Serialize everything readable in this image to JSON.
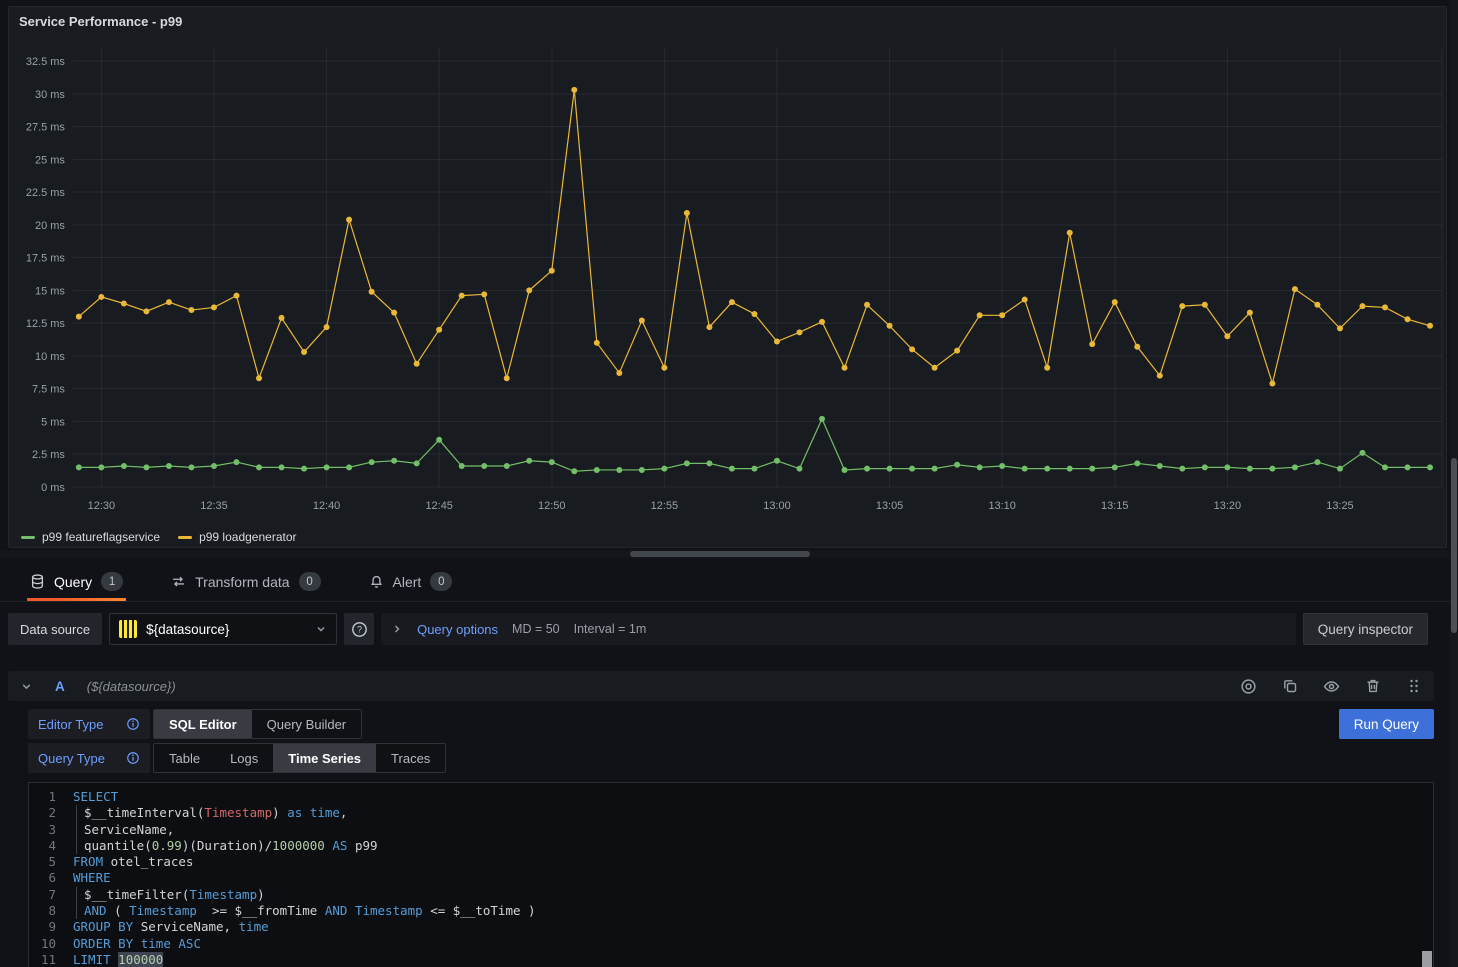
{
  "panel": {
    "title": "Service Performance - p99",
    "legend": [
      {
        "label": "p99 featureflagservice",
        "color": "#73BF69"
      },
      {
        "label": "p99 loadgenerator",
        "color": "#EAB839"
      }
    ]
  },
  "chart_data": {
    "type": "line",
    "title": "Service Performance - p99",
    "xlabel": "",
    "ylabel": "",
    "ylim": [
      0,
      32.5
    ],
    "grid": true,
    "legend_position": "bottom-left",
    "yticks": [
      "0 ms",
      "2.5 ms",
      "5 ms",
      "7.5 ms",
      "10 ms",
      "12.5 ms",
      "15 ms",
      "17.5 ms",
      "20 ms",
      "22.5 ms",
      "25 ms",
      "27.5 ms",
      "30 ms",
      "32.5 ms"
    ],
    "xticks": [
      "12:30",
      "12:35",
      "12:40",
      "12:45",
      "12:50",
      "12:55",
      "13:00",
      "13:05",
      "13:10",
      "13:15",
      "13:20",
      "13:25"
    ],
    "x": [
      "12:29",
      "12:30",
      "12:31",
      "12:32",
      "12:33",
      "12:34",
      "12:35",
      "12:36",
      "12:37",
      "12:38",
      "12:39",
      "12:40",
      "12:41",
      "12:42",
      "12:43",
      "12:44",
      "12:45",
      "12:46",
      "12:47",
      "12:48",
      "12:49",
      "12:50",
      "12:51",
      "12:52",
      "12:53",
      "12:54",
      "12:55",
      "12:56",
      "12:57",
      "12:58",
      "12:59",
      "13:00",
      "13:01",
      "13:02",
      "13:03",
      "13:04",
      "13:05",
      "13:06",
      "13:07",
      "13:08",
      "13:09",
      "13:10",
      "13:11",
      "13:12",
      "13:13",
      "13:14",
      "13:15",
      "13:16",
      "13:17",
      "13:18",
      "13:19",
      "13:20",
      "13:21",
      "13:22",
      "13:23",
      "13:24",
      "13:25",
      "13:26",
      "13:27",
      "13:28",
      "13:29"
    ],
    "series": [
      {
        "name": "p99 featureflagservice",
        "color": "#73BF69",
        "values": [
          1.5,
          1.5,
          1.6,
          1.5,
          1.6,
          1.5,
          1.6,
          1.9,
          1.5,
          1.5,
          1.4,
          1.5,
          1.5,
          1.9,
          2.0,
          1.8,
          3.6,
          1.6,
          1.6,
          1.6,
          2.0,
          1.9,
          1.2,
          1.3,
          1.3,
          1.3,
          1.4,
          1.8,
          1.8,
          1.4,
          1.4,
          2.0,
          1.4,
          5.2,
          1.3,
          1.4,
          1.4,
          1.4,
          1.4,
          1.7,
          1.5,
          1.6,
          1.4,
          1.4,
          1.4,
          1.4,
          1.5,
          1.8,
          1.6,
          1.4,
          1.5,
          1.5,
          1.4,
          1.4,
          1.5,
          1.9,
          1.4,
          2.6,
          1.5,
          1.5,
          1.5
        ]
      },
      {
        "name": "p99 loadgenerator",
        "color": "#EAB839",
        "values": [
          13.0,
          14.5,
          14.0,
          13.4,
          14.1,
          13.5,
          13.7,
          14.6,
          8.3,
          12.9,
          10.3,
          12.2,
          20.4,
          14.9,
          13.3,
          9.4,
          12.0,
          14.6,
          14.7,
          8.3,
          15.0,
          16.5,
          30.3,
          11.0,
          8.7,
          12.7,
          9.1,
          20.9,
          12.2,
          14.1,
          13.2,
          11.1,
          11.8,
          12.6,
          9.1,
          13.9,
          12.3,
          10.5,
          9.1,
          10.4,
          13.1,
          13.1,
          14.3,
          9.1,
          19.4,
          10.9,
          14.1,
          10.7,
          8.5,
          13.8,
          13.9,
          11.5,
          13.3,
          7.9,
          15.1,
          13.9,
          12.1,
          13.8,
          13.7,
          12.8,
          12.3
        ]
      }
    ]
  },
  "tabs": [
    {
      "label": "Query",
      "badge": "1",
      "icon": "database-icon",
      "active": true
    },
    {
      "label": "Transform data",
      "badge": "0",
      "icon": "transform-icon",
      "active": false
    },
    {
      "label": "Alert",
      "badge": "0",
      "icon": "bell-icon",
      "active": false
    }
  ],
  "toolbar": {
    "datasource_label": "Data source",
    "datasource_value": "${datasource}",
    "query_options_label": "Query options",
    "md": "MD = 50",
    "interval": "Interval = 1m",
    "query_inspector_label": "Query inspector"
  },
  "query_row": {
    "ref_id": "A",
    "datasource_hint": "(${datasource})"
  },
  "editor": {
    "editor_type_label": "Editor Type",
    "editor_type_options": [
      "SQL Editor",
      "Query Builder"
    ],
    "editor_type_active": "SQL Editor",
    "query_type_label": "Query Type",
    "query_type_options": [
      "Table",
      "Logs",
      "Time Series",
      "Traces"
    ],
    "query_type_active": "Time Series",
    "run_query_label": "Run Query"
  },
  "code": {
    "lines": [
      {
        "no": "1",
        "guide": false,
        "seg": [
          [
            "kw",
            "SELECT"
          ]
        ]
      },
      {
        "no": "2",
        "guide": true,
        "seg": [
          [
            "pl",
            "$__timeInterval("
          ],
          [
            "str",
            "Timestamp"
          ],
          [
            "pl",
            ") "
          ],
          [
            "kw",
            "as"
          ],
          [
            "pl",
            " "
          ],
          [
            "kw",
            "time"
          ],
          [
            "pl",
            ","
          ]
        ]
      },
      {
        "no": "3",
        "guide": true,
        "seg": [
          [
            "pl",
            "ServiceName,"
          ]
        ]
      },
      {
        "no": "4",
        "guide": true,
        "seg": [
          [
            "pl",
            "quantile("
          ],
          [
            "num",
            "0.99"
          ],
          [
            "pl",
            ")(Duration)/"
          ],
          [
            "num",
            "1000000"
          ],
          [
            "pl",
            " "
          ],
          [
            "kw",
            "AS"
          ],
          [
            "pl",
            " p99"
          ]
        ]
      },
      {
        "no": "5",
        "guide": false,
        "seg": [
          [
            "kw",
            "FROM"
          ],
          [
            "pl",
            " otel_traces"
          ]
        ]
      },
      {
        "no": "6",
        "guide": false,
        "seg": [
          [
            "kw",
            "WHERE"
          ]
        ]
      },
      {
        "no": "7",
        "guide": true,
        "seg": [
          [
            "pl",
            "$__timeFilter("
          ],
          [
            "kw",
            "Timestamp"
          ],
          [
            "pl",
            ")"
          ]
        ]
      },
      {
        "no": "8",
        "guide": true,
        "seg": [
          [
            "kw",
            "AND"
          ],
          [
            "pl",
            " ( "
          ],
          [
            "kw",
            "Timestamp"
          ],
          [
            "pl",
            "  >= $__fromTime "
          ],
          [
            "kw",
            "AND"
          ],
          [
            "pl",
            " "
          ],
          [
            "kw",
            "Timestamp"
          ],
          [
            "pl",
            " <= $__toTime )"
          ]
        ]
      },
      {
        "no": "9",
        "guide": false,
        "seg": [
          [
            "kw",
            "GROUP BY"
          ],
          [
            "pl",
            " ServiceName, "
          ],
          [
            "kw",
            "time"
          ]
        ]
      },
      {
        "no": "10",
        "guide": false,
        "seg": [
          [
            "kw",
            "ORDER BY"
          ],
          [
            "pl",
            " "
          ],
          [
            "kw",
            "time"
          ],
          [
            "pl",
            " "
          ],
          [
            "kw",
            "ASC"
          ]
        ]
      },
      {
        "no": "11",
        "guide": false,
        "seg": [
          [
            "kw",
            "LIMIT"
          ],
          [
            "pl",
            " "
          ],
          [
            "numsel",
            "100000"
          ]
        ]
      }
    ]
  }
}
